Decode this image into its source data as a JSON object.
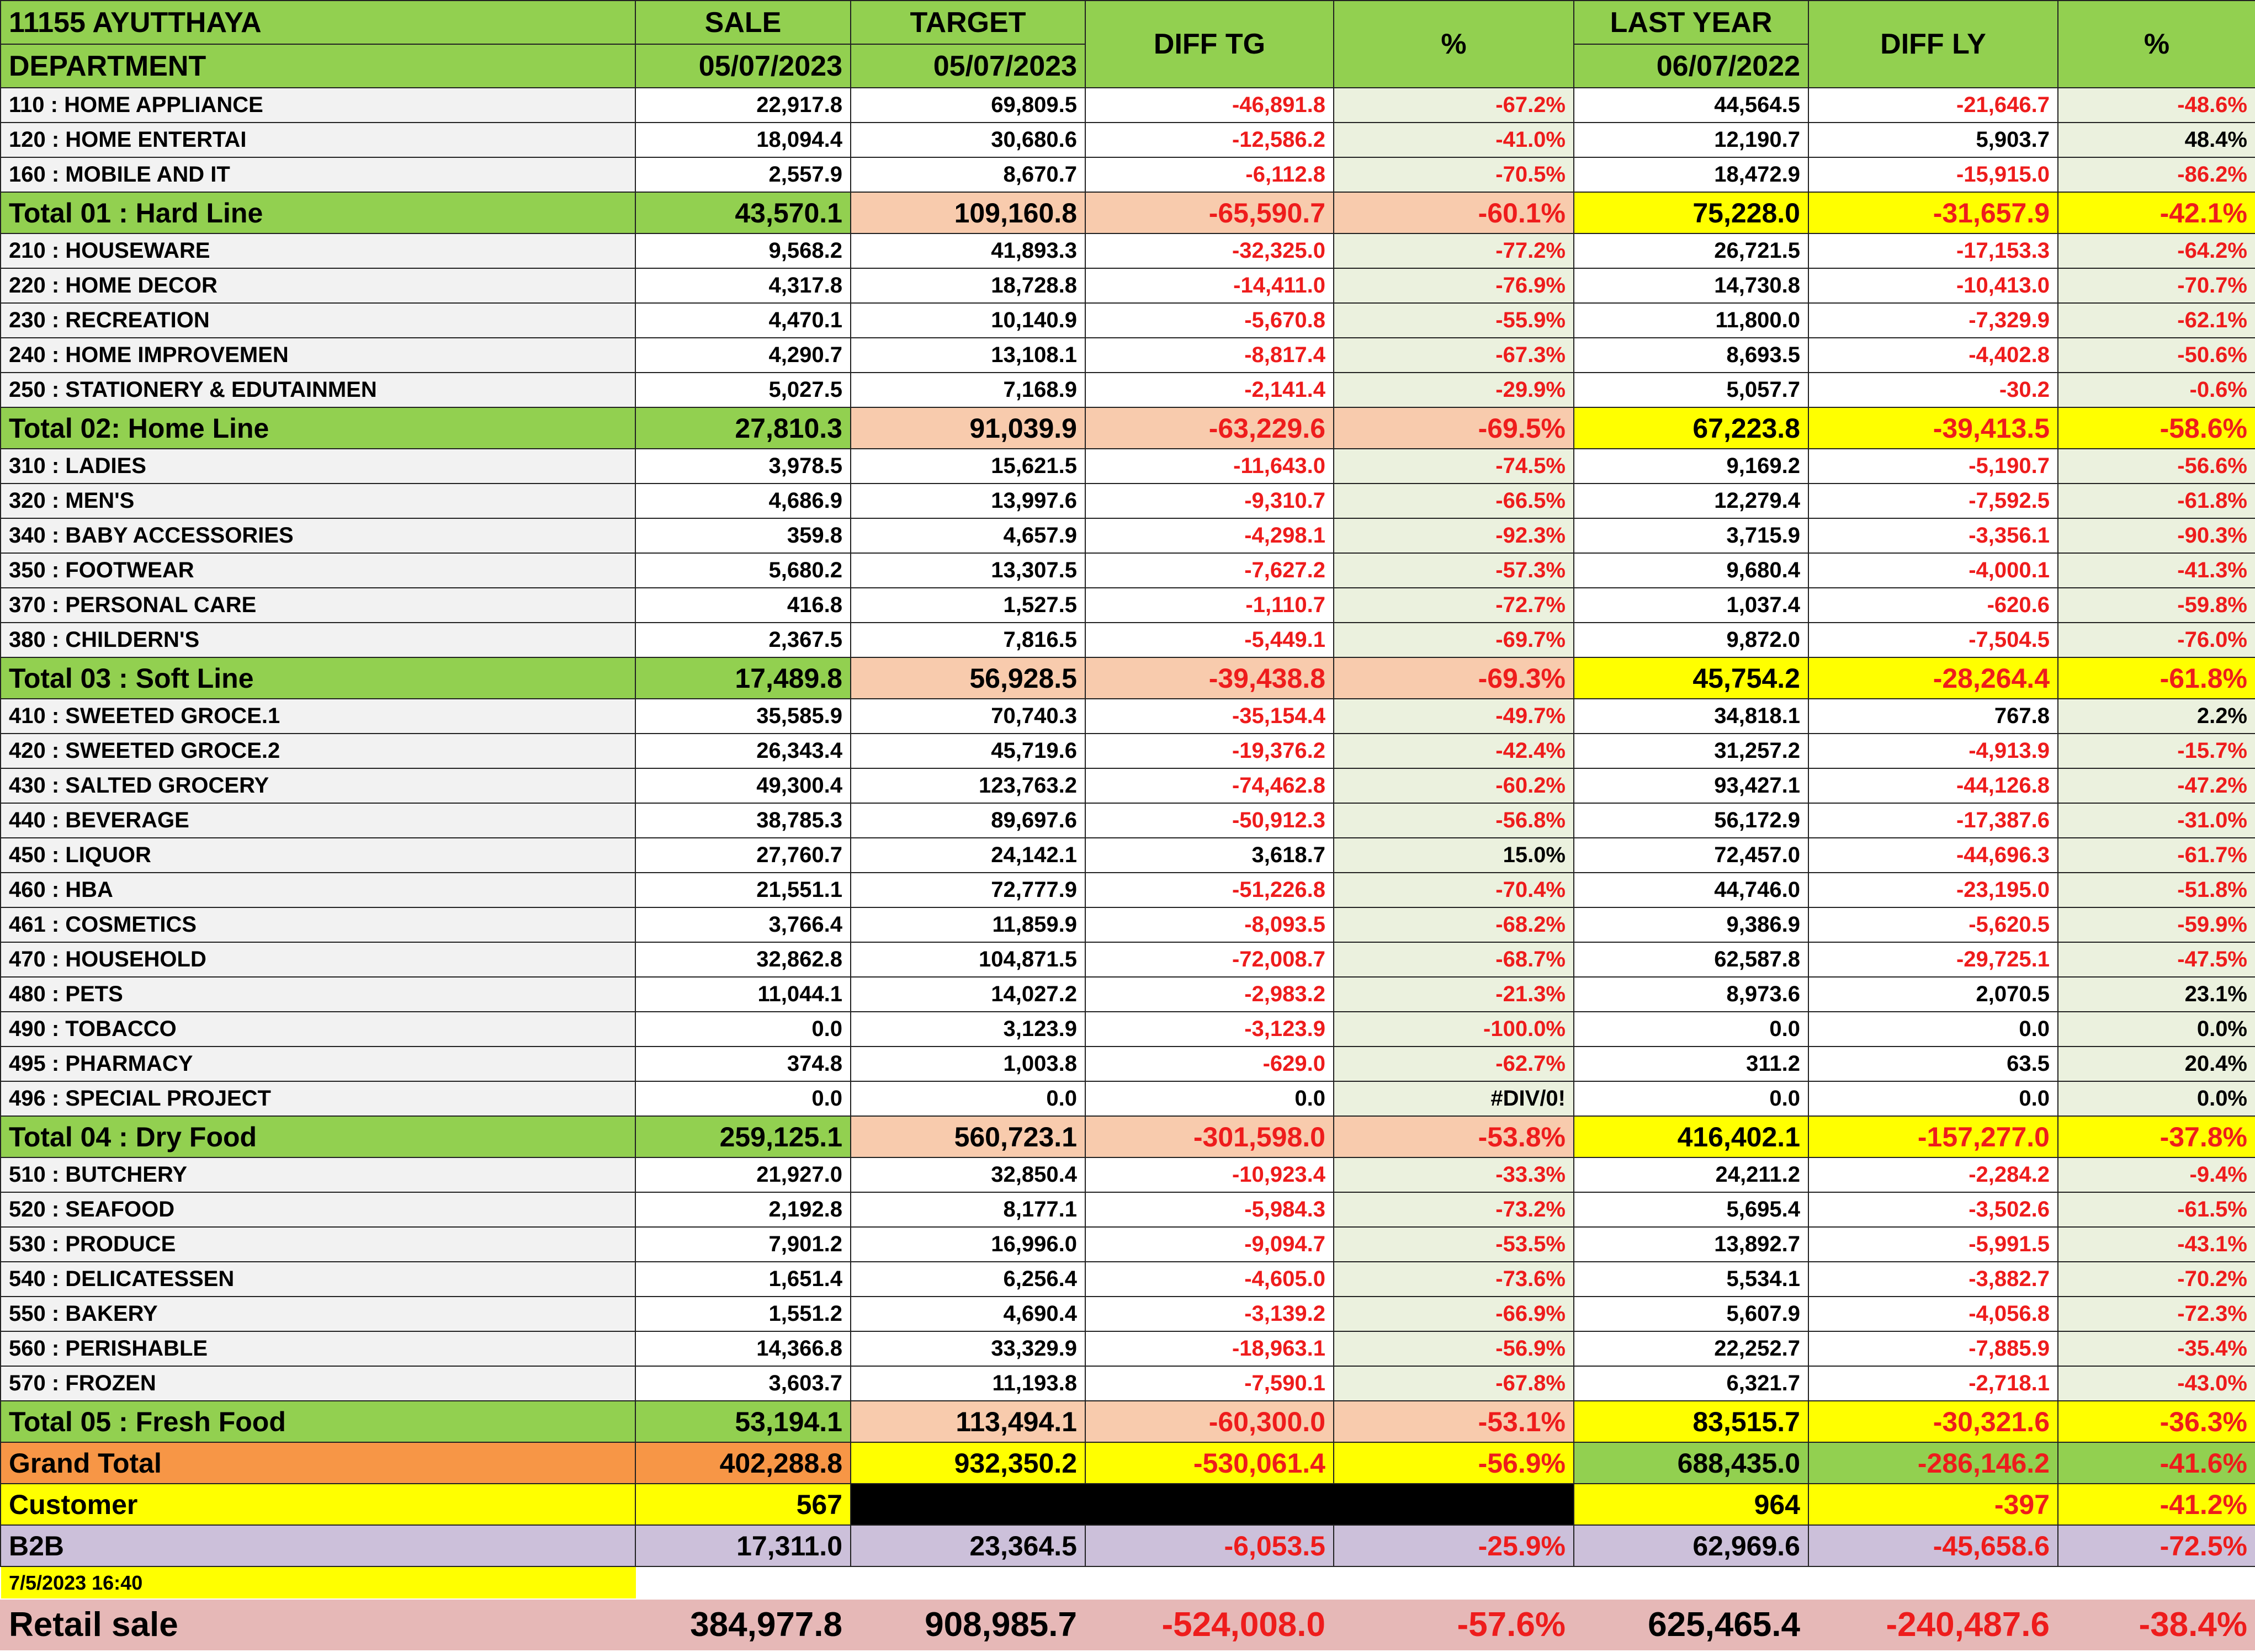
{
  "header": {
    "store": "11155 AYUTTHAYA",
    "department_label": "DEPARTMENT",
    "sale_label": "SALE",
    "sale_date": "05/07/2023",
    "target_label": "TARGET",
    "target_date": "05/07/2023",
    "diff_tg_label": "DIFF TG",
    "pct_label": "%",
    "last_year_label": "LAST YEAR",
    "last_year_date": "06/07/2022",
    "diff_ly_label": "DIFF LY",
    "pct_ly_label": "%"
  },
  "groups": [
    {
      "departments": [
        {
          "name": "110 : HOME APPLIANCE",
          "sale": "22,917.8",
          "target": "69,809.5",
          "diff_tg": "-46,891.8",
          "pct_tg": "-67.2%",
          "last_year": "44,564.5",
          "diff_ly": "-21,646.7",
          "pct_ly": "-48.6%"
        },
        {
          "name": "120 : HOME ENTERTAI",
          "sale": "18,094.4",
          "target": "30,680.6",
          "diff_tg": "-12,586.2",
          "pct_tg": "-41.0%",
          "last_year": "12,190.7",
          "diff_ly": "5,903.7",
          "pct_ly": "48.4%"
        },
        {
          "name": "160 : MOBILE AND IT",
          "sale": "2,557.9",
          "target": "8,670.7",
          "diff_tg": "-6,112.8",
          "pct_tg": "-70.5%",
          "last_year": "18,472.9",
          "diff_ly": "-15,915.0",
          "pct_ly": "-86.2%"
        }
      ],
      "total": {
        "name": "Total 01 : Hard Line",
        "sale": "43,570.1",
        "target": "109,160.8",
        "diff_tg": "-65,590.7",
        "pct_tg": "-60.1%",
        "last_year": "75,228.0",
        "diff_ly": "-31,657.9",
        "pct_ly": "-42.1%"
      }
    },
    {
      "departments": [
        {
          "name": "210 : HOUSEWARE",
          "sale": "9,568.2",
          "target": "41,893.3",
          "diff_tg": "-32,325.0",
          "pct_tg": "-77.2%",
          "last_year": "26,721.5",
          "diff_ly": "-17,153.3",
          "pct_ly": "-64.2%"
        },
        {
          "name": "220 : HOME DECOR",
          "sale": "4,317.8",
          "target": "18,728.8",
          "diff_tg": "-14,411.0",
          "pct_tg": "-76.9%",
          "last_year": "14,730.8",
          "diff_ly": "-10,413.0",
          "pct_ly": "-70.7%"
        },
        {
          "name": "230 : RECREATION",
          "sale": "4,470.1",
          "target": "10,140.9",
          "diff_tg": "-5,670.8",
          "pct_tg": "-55.9%",
          "last_year": "11,800.0",
          "diff_ly": "-7,329.9",
          "pct_ly": "-62.1%"
        },
        {
          "name": "240 : HOME IMPROVEMEN",
          "sale": "4,290.7",
          "target": "13,108.1",
          "diff_tg": "-8,817.4",
          "pct_tg": "-67.3%",
          "last_year": "8,693.5",
          "diff_ly": "-4,402.8",
          "pct_ly": "-50.6%"
        },
        {
          "name": "250 : STATIONERY & EDUTAINMEN",
          "sale": "5,027.5",
          "target": "7,168.9",
          "diff_tg": "-2,141.4",
          "pct_tg": "-29.9%",
          "last_year": "5,057.7",
          "diff_ly": "-30.2",
          "pct_ly": "-0.6%"
        }
      ],
      "total": {
        "name": "Total 02: Home Line",
        "sale": "27,810.3",
        "target": "91,039.9",
        "diff_tg": "-63,229.6",
        "pct_tg": "-69.5%",
        "last_year": "67,223.8",
        "diff_ly": "-39,413.5",
        "pct_ly": "-58.6%"
      }
    },
    {
      "departments": [
        {
          "name": "310 : LADIES",
          "sale": "3,978.5",
          "target": "15,621.5",
          "diff_tg": "-11,643.0",
          "pct_tg": "-74.5%",
          "last_year": "9,169.2",
          "diff_ly": "-5,190.7",
          "pct_ly": "-56.6%"
        },
        {
          "name": "320 : MEN'S",
          "sale": "4,686.9",
          "target": "13,997.6",
          "diff_tg": "-9,310.7",
          "pct_tg": "-66.5%",
          "last_year": "12,279.4",
          "diff_ly": "-7,592.5",
          "pct_ly": "-61.8%"
        },
        {
          "name": "340 : BABY ACCESSORIES",
          "sale": "359.8",
          "target": "4,657.9",
          "diff_tg": "-4,298.1",
          "pct_tg": "-92.3%",
          "last_year": "3,715.9",
          "diff_ly": "-3,356.1",
          "pct_ly": "-90.3%"
        },
        {
          "name": "350 : FOOTWEAR",
          "sale": "5,680.2",
          "target": "13,307.5",
          "diff_tg": "-7,627.2",
          "pct_tg": "-57.3%",
          "last_year": "9,680.4",
          "diff_ly": "-4,000.1",
          "pct_ly": "-41.3%"
        },
        {
          "name": "370 : PERSONAL CARE",
          "sale": "416.8",
          "target": "1,527.5",
          "diff_tg": "-1,110.7",
          "pct_tg": "-72.7%",
          "last_year": "1,037.4",
          "diff_ly": "-620.6",
          "pct_ly": "-59.8%"
        },
        {
          "name": "380 : CHILDERN'S",
          "sale": "2,367.5",
          "target": "7,816.5",
          "diff_tg": "-5,449.1",
          "pct_tg": "-69.7%",
          "last_year": "9,872.0",
          "diff_ly": "-7,504.5",
          "pct_ly": "-76.0%"
        }
      ],
      "total": {
        "name": "Total 03 : Soft Line",
        "sale": "17,489.8",
        "target": "56,928.5",
        "diff_tg": "-39,438.8",
        "pct_tg": "-69.3%",
        "last_year": "45,754.2",
        "diff_ly": "-28,264.4",
        "pct_ly": "-61.8%"
      }
    },
    {
      "departments": [
        {
          "name": "410 : SWEETED GROCE.1",
          "sale": "35,585.9",
          "target": "70,740.3",
          "diff_tg": "-35,154.4",
          "pct_tg": "-49.7%",
          "last_year": "34,818.1",
          "diff_ly": "767.8",
          "pct_ly": "2.2%"
        },
        {
          "name": "420 : SWEETED GROCE.2",
          "sale": "26,343.4",
          "target": "45,719.6",
          "diff_tg": "-19,376.2",
          "pct_tg": "-42.4%",
          "last_year": "31,257.2",
          "diff_ly": "-4,913.9",
          "pct_ly": "-15.7%"
        },
        {
          "name": "430 : SALTED GROCERY",
          "sale": "49,300.4",
          "target": "123,763.2",
          "diff_tg": "-74,462.8",
          "pct_tg": "-60.2%",
          "last_year": "93,427.1",
          "diff_ly": "-44,126.8",
          "pct_ly": "-47.2%"
        },
        {
          "name": "440 : BEVERAGE",
          "sale": "38,785.3",
          "target": "89,697.6",
          "diff_tg": "-50,912.3",
          "pct_tg": "-56.8%",
          "last_year": "56,172.9",
          "diff_ly": "-17,387.6",
          "pct_ly": "-31.0%"
        },
        {
          "name": "450 : LIQUOR",
          "sale": "27,760.7",
          "target": "24,142.1",
          "diff_tg": "3,618.7",
          "pct_tg": "15.0%",
          "last_year": "72,457.0",
          "diff_ly": "-44,696.3",
          "pct_ly": "-61.7%"
        },
        {
          "name": "460 : HBA",
          "sale": "21,551.1",
          "target": "72,777.9",
          "diff_tg": "-51,226.8",
          "pct_tg": "-70.4%",
          "last_year": "44,746.0",
          "diff_ly": "-23,195.0",
          "pct_ly": "-51.8%"
        },
        {
          "name": "461 : COSMETICS",
          "sale": "3,766.4",
          "target": "11,859.9",
          "diff_tg": "-8,093.5",
          "pct_tg": "-68.2%",
          "last_year": "9,386.9",
          "diff_ly": "-5,620.5",
          "pct_ly": "-59.9%"
        },
        {
          "name": "470 : HOUSEHOLD",
          "sale": "32,862.8",
          "target": "104,871.5",
          "diff_tg": "-72,008.7",
          "pct_tg": "-68.7%",
          "last_year": "62,587.8",
          "diff_ly": "-29,725.1",
          "pct_ly": "-47.5%"
        },
        {
          "name": "480 : PETS",
          "sale": "11,044.1",
          "target": "14,027.2",
          "diff_tg": "-2,983.2",
          "pct_tg": "-21.3%",
          "last_year": "8,973.6",
          "diff_ly": "2,070.5",
          "pct_ly": "23.1%"
        },
        {
          "name": "490 : TOBACCO",
          "sale": "0.0",
          "target": "3,123.9",
          "diff_tg": "-3,123.9",
          "pct_tg": "-100.0%",
          "last_year": "0.0",
          "diff_ly": "0.0",
          "pct_ly": "0.0%"
        },
        {
          "name": "495 : PHARMACY",
          "sale": "374.8",
          "target": "1,003.8",
          "diff_tg": "-629.0",
          "pct_tg": "-62.7%",
          "last_year": "311.2",
          "diff_ly": "63.5",
          "pct_ly": "20.4%"
        },
        {
          "name": "496 : SPECIAL PROJECT",
          "sale": "0.0",
          "target": "0.0",
          "diff_tg": "0.0",
          "pct_tg": "#DIV/0!",
          "last_year": "0.0",
          "diff_ly": "0.0",
          "pct_ly": "0.0%"
        }
      ],
      "total": {
        "name": "Total 04 : Dry Food",
        "sale": "259,125.1",
        "target": "560,723.1",
        "diff_tg": "-301,598.0",
        "pct_tg": "-53.8%",
        "last_year": "416,402.1",
        "diff_ly": "-157,277.0",
        "pct_ly": "-37.8%"
      }
    },
    {
      "departments": [
        {
          "name": "510 : BUTCHERY",
          "sale": "21,927.0",
          "target": "32,850.4",
          "diff_tg": "-10,923.4",
          "pct_tg": "-33.3%",
          "last_year": "24,211.2",
          "diff_ly": "-2,284.2",
          "pct_ly": "-9.4%"
        },
        {
          "name": "520 : SEAFOOD",
          "sale": "2,192.8",
          "target": "8,177.1",
          "diff_tg": "-5,984.3",
          "pct_tg": "-73.2%",
          "last_year": "5,695.4",
          "diff_ly": "-3,502.6",
          "pct_ly": "-61.5%"
        },
        {
          "name": "530 : PRODUCE",
          "sale": "7,901.2",
          "target": "16,996.0",
          "diff_tg": "-9,094.7",
          "pct_tg": "-53.5%",
          "last_year": "13,892.7",
          "diff_ly": "-5,991.5",
          "pct_ly": "-43.1%"
        },
        {
          "name": "540 : DELICATESSEN",
          "sale": "1,651.4",
          "target": "6,256.4",
          "diff_tg": "-4,605.0",
          "pct_tg": "-73.6%",
          "last_year": "5,534.1",
          "diff_ly": "-3,882.7",
          "pct_ly": "-70.2%"
        },
        {
          "name": "550 : BAKERY",
          "sale": "1,551.2",
          "target": "4,690.4",
          "diff_tg": "-3,139.2",
          "pct_tg": "-66.9%",
          "last_year": "5,607.9",
          "diff_ly": "-4,056.8",
          "pct_ly": "-72.3%"
        },
        {
          "name": "560 : PERISHABLE",
          "sale": "14,366.8",
          "target": "33,329.9",
          "diff_tg": "-18,963.1",
          "pct_tg": "-56.9%",
          "last_year": "22,252.7",
          "diff_ly": "-7,885.9",
          "pct_ly": "-35.4%"
        },
        {
          "name": "570 : FROZEN",
          "sale": "3,603.7",
          "target": "11,193.8",
          "diff_tg": "-7,590.1",
          "pct_tg": "-67.8%",
          "last_year": "6,321.7",
          "diff_ly": "-2,718.1",
          "pct_ly": "-43.0%"
        }
      ],
      "total": {
        "name": "Total 05 : Fresh Food",
        "sale": "53,194.1",
        "target": "113,494.1",
        "diff_tg": "-60,300.0",
        "pct_tg": "-53.1%",
        "last_year": "83,515.7",
        "diff_ly": "-30,321.6",
        "pct_ly": "-36.3%"
      }
    }
  ],
  "grand_total": {
    "name": "Grand Total",
    "sale": "402,288.8",
    "target": "932,350.2",
    "diff_tg": "-530,061.4",
    "pct_tg": "-56.9%",
    "last_year": "688,435.0",
    "diff_ly": "-286,146.2",
    "pct_ly": "-41.6%"
  },
  "customer": {
    "name": "Customer",
    "sale": "567",
    "last_year": "964",
    "diff_ly": "-397",
    "pct_ly": "-41.2%"
  },
  "b2b": {
    "name": "B2B",
    "sale": "17,311.0",
    "target": "23,364.5",
    "diff_tg": "-6,053.5",
    "pct_tg": "-25.9%",
    "last_year": "62,969.6",
    "diff_ly": "-45,658.6",
    "pct_ly": "-72.5%"
  },
  "timestamp": "7/5/2023 16:40",
  "retail_sale": {
    "name": "Retail sale",
    "sale": "384,977.8",
    "target": "908,985.7",
    "diff_tg": "-524,008.0",
    "pct_tg": "-57.6%",
    "last_year": "625,465.4",
    "diff_ly": "-240,487.6",
    "pct_ly": "-38.4%"
  },
  "colors": {
    "header_green": "#92d050",
    "target_peach": "#f8cbad",
    "last_year_yellow": "#ffff00",
    "grand_total_orange": "#f79646",
    "b2b_lavender": "#ccc0da",
    "retail_pink": "#e6b8b7",
    "negative_red": "#ee1c1c"
  }
}
